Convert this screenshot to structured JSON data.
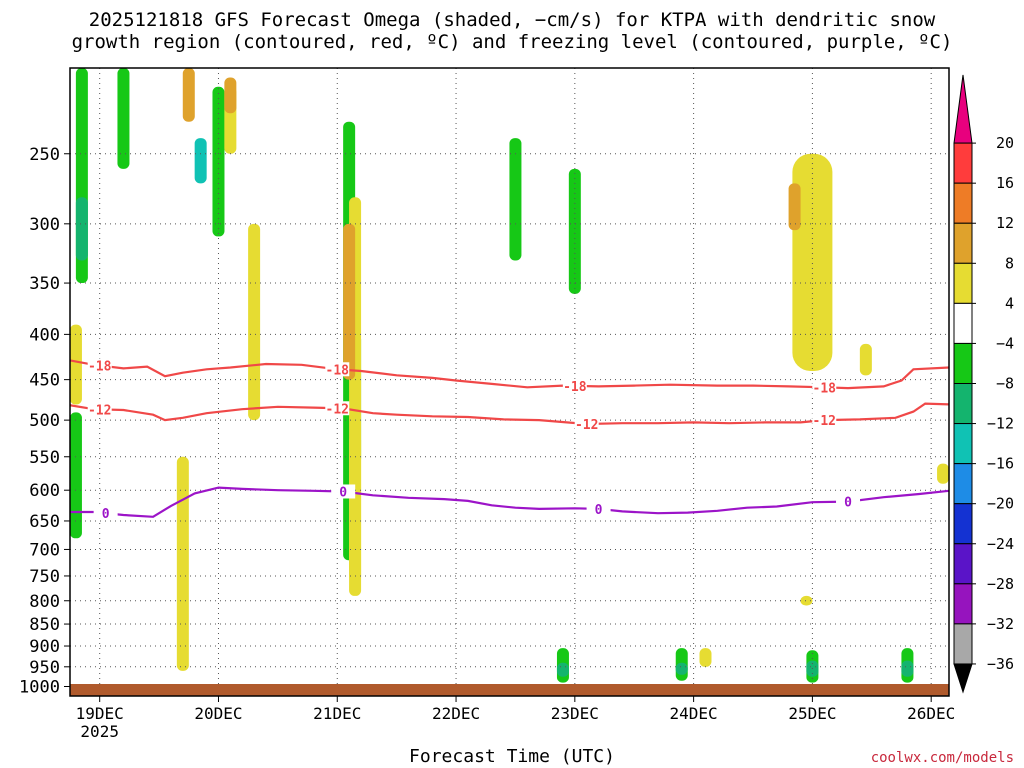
{
  "title_line1": "2025121818 GFS Forecast Omega (shaded, −cm/s) for KTPA with dendritic snow",
  "title_line2": "growth region (contoured, red, ºC) and freezing level (contoured, purple, ºC)",
  "xlabel": "Forecast Time (UTC)",
  "credit": "coolwx.com/models",
  "colors": {
    "dgz_contour": "#f04848",
    "freezing_contour": "#9c14c8",
    "terrain": "#b05a2c",
    "grid": "#555555"
  },
  "chart_data": {
    "type": "heatmap",
    "title": "2025121818 GFS Forecast Omega (shaded, −cm/s) for KTPA with dendritic snow growth region (contoured, red, ºC) and freezing level (contoured, purple, ºC)",
    "xlabel": "Forecast Time (UTC)",
    "ylabel": "",
    "y_axis": {
      "ticks": [
        250,
        300,
        350,
        400,
        450,
        500,
        550,
        600,
        650,
        700,
        750,
        800,
        850,
        900,
        950,
        1000
      ],
      "range_hpa": [
        200,
        1025
      ],
      "scale": "log-pressure"
    },
    "x_axis": {
      "ticks": [
        "19DEC",
        "20DEC",
        "21DEC",
        "22DEC",
        "23DEC",
        "24DEC",
        "25DEC",
        "26DEC"
      ],
      "year_label": "2025",
      "range_days": [
        -0.25,
        7.15
      ]
    },
    "colorbar": {
      "labels": [
        "20",
        "16",
        "12",
        "8",
        "4",
        "−4",
        "−8",
        "−12",
        "−16",
        "−20",
        "−24",
        "−28",
        "−32",
        "−36"
      ],
      "colors": [
        "#e8007e",
        "#ff3c3c",
        "#ee7c26",
        "#dfa22c",
        "#e6dc32",
        "#ffffff",
        "#16c816",
        "#14b46e",
        "#10c2b4",
        "#1e8ce6",
        "#1432d2",
        "#5a14c8",
        "#9614be",
        "#a8a8a8",
        "#000000"
      ]
    },
    "contours": [
      {
        "name": "dendritic growth upper",
        "label": "-18",
        "color": "#f04848",
        "label_at_days": [
          0.0,
          2.0,
          4.0,
          6.1
        ],
        "points": [
          [
            -0.25,
            428
          ],
          [
            -0.05,
            433
          ],
          [
            0.2,
            437
          ],
          [
            0.4,
            435
          ],
          [
            0.55,
            446
          ],
          [
            0.7,
            442
          ],
          [
            0.9,
            438
          ],
          [
            1.1,
            436
          ],
          [
            1.4,
            432
          ],
          [
            1.7,
            433
          ],
          [
            2.0,
            438
          ],
          [
            2.2,
            440
          ],
          [
            2.5,
            445
          ],
          [
            2.8,
            448
          ],
          [
            3.0,
            451
          ],
          [
            3.3,
            455
          ],
          [
            3.6,
            459
          ],
          [
            3.9,
            457
          ],
          [
            4.2,
            458
          ],
          [
            4.5,
            457
          ],
          [
            4.8,
            456
          ],
          [
            5.2,
            457
          ],
          [
            5.5,
            457
          ],
          [
            5.8,
            458
          ],
          [
            6.1,
            459
          ],
          [
            6.3,
            460
          ],
          [
            6.6,
            458
          ],
          [
            6.75,
            451
          ],
          [
            6.85,
            438
          ],
          [
            7.15,
            436
          ]
        ]
      },
      {
        "name": "dendritic growth lower",
        "label": "-12",
        "color": "#f04848",
        "label_at_days": [
          0.0,
          2.0,
          4.1,
          6.1
        ],
        "points": [
          [
            -0.25,
            481
          ],
          [
            -0.05,
            486
          ],
          [
            0.2,
            487
          ],
          [
            0.45,
            493
          ],
          [
            0.55,
            500
          ],
          [
            0.7,
            497
          ],
          [
            0.9,
            491
          ],
          [
            1.2,
            486
          ],
          [
            1.5,
            483
          ],
          [
            1.8,
            484
          ],
          [
            2.05,
            485
          ],
          [
            2.3,
            491
          ],
          [
            2.5,
            493
          ],
          [
            2.8,
            495
          ],
          [
            3.1,
            496
          ],
          [
            3.4,
            499
          ],
          [
            3.7,
            500
          ],
          [
            4.1,
            505
          ],
          [
            4.4,
            504
          ],
          [
            4.7,
            504
          ],
          [
            5.0,
            503
          ],
          [
            5.3,
            504
          ],
          [
            5.6,
            503
          ],
          [
            5.9,
            503
          ],
          [
            6.1,
            500
          ],
          [
            6.4,
            499
          ],
          [
            6.7,
            497
          ],
          [
            6.85,
            489
          ],
          [
            6.95,
            479
          ],
          [
            7.15,
            480
          ]
        ]
      },
      {
        "name": "freezing level",
        "label": "0",
        "color": "#9c14c8",
        "label_at_days": [
          0.05,
          2.05,
          4.2,
          6.3
        ],
        "points": [
          [
            -0.25,
            635
          ],
          [
            -0.05,
            635
          ],
          [
            0.2,
            640
          ],
          [
            0.45,
            643
          ],
          [
            0.6,
            625
          ],
          [
            0.8,
            605
          ],
          [
            1.0,
            596
          ],
          [
            1.2,
            598
          ],
          [
            1.5,
            600
          ],
          [
            1.8,
            601
          ],
          [
            2.05,
            602
          ],
          [
            2.3,
            608
          ],
          [
            2.6,
            612
          ],
          [
            2.9,
            614
          ],
          [
            3.1,
            617
          ],
          [
            3.3,
            624
          ],
          [
            3.5,
            628
          ],
          [
            3.7,
            630
          ],
          [
            4.0,
            629
          ],
          [
            4.2,
            630
          ],
          [
            4.4,
            634
          ],
          [
            4.7,
            637
          ],
          [
            4.95,
            636
          ],
          [
            5.2,
            633
          ],
          [
            5.45,
            628
          ],
          [
            5.7,
            626
          ],
          [
            6.0,
            619
          ],
          [
            6.3,
            618
          ],
          [
            6.6,
            611
          ],
          [
            6.9,
            606
          ],
          [
            7.15,
            601
          ]
        ]
      }
    ],
    "shaded_regions": [
      {
        "value": -4,
        "at_day": -0.15,
        "p_top": 200,
        "p_bottom": 350
      },
      {
        "value": -4,
        "at_day": 0.2,
        "p_top": 200,
        "p_bottom": 260
      },
      {
        "value": -4,
        "at_day": 1.0,
        "p_top": 210,
        "p_bottom": 310
      },
      {
        "value": -4,
        "at_day": 2.1,
        "p_top": 230,
        "p_bottom": 720
      },
      {
        "value": -4,
        "at_day": 2.15,
        "p_top": 400,
        "p_bottom": 560
      },
      {
        "value": -4,
        "at_day": 3.5,
        "p_top": 240,
        "p_bottom": 330
      },
      {
        "value": -4,
        "at_day": 4.0,
        "p_top": 260,
        "p_bottom": 360
      },
      {
        "value": -4,
        "at_day": 6.0,
        "p_top": 330,
        "p_bottom": 385
      },
      {
        "value": -4,
        "at_day": 3.9,
        "p_top": 905,
        "p_bottom": 990
      },
      {
        "value": -4,
        "at_day": 4.9,
        "p_top": 905,
        "p_bottom": 985
      },
      {
        "value": -4,
        "at_day": 6.0,
        "p_top": 910,
        "p_bottom": 990
      },
      {
        "value": -4,
        "at_day": 6.8,
        "p_top": 905,
        "p_bottom": 990
      },
      {
        "value": -4,
        "at_day": -0.2,
        "p_top": 490,
        "p_bottom": 680
      },
      {
        "value": -8,
        "at_day": -0.15,
        "p_top": 280,
        "p_bottom": 330
      },
      {
        "value": -8,
        "at_day": 3.9,
        "p_top": 940,
        "p_bottom": 975
      },
      {
        "value": -8,
        "at_day": 4.9,
        "p_top": 940,
        "p_bottom": 970
      },
      {
        "value": -8,
        "at_day": 6.0,
        "p_top": 935,
        "p_bottom": 975
      },
      {
        "value": -8,
        "at_day": 6.8,
        "p_top": 935,
        "p_bottom": 975
      },
      {
        "value": -12,
        "at_day": 0.85,
        "p_top": 240,
        "p_bottom": 270
      },
      {
        "value": 4,
        "at_day": 6.0,
        "p_top": 250,
        "p_bottom": 440
      },
      {
        "value": 4,
        "at_day": 1.1,
        "p_top": 210,
        "p_bottom": 250
      },
      {
        "value": 4,
        "at_day": 2.15,
        "p_top": 280,
        "p_bottom": 790
      },
      {
        "value": 4,
        "at_day": -0.2,
        "p_top": 390,
        "p_bottom": 480
      },
      {
        "value": 4,
        "at_day": 0.7,
        "p_top": 550,
        "p_bottom": 960
      },
      {
        "value": 4,
        "at_day": 1.3,
        "p_top": 300,
        "p_bottom": 500
      },
      {
        "value": 4,
        "at_day": 2.15,
        "p_top": 520,
        "p_bottom": 760
      },
      {
        "value": 4,
        "at_day": 5.1,
        "p_top": 905,
        "p_bottom": 950
      },
      {
        "value": 4,
        "at_day": 6.45,
        "p_top": 410,
        "p_bottom": 445
      },
      {
        "value": 4,
        "at_day": 7.1,
        "p_top": 560,
        "p_bottom": 590
      },
      {
        "value": 4,
        "at_day": 5.95,
        "p_top": 790,
        "p_bottom": 810
      },
      {
        "value": 8,
        "at_day": 5.85,
        "p_top": 270,
        "p_bottom": 305
      },
      {
        "value": 8,
        "at_day": 2.1,
        "p_top": 300,
        "p_bottom": 450
      },
      {
        "value": 8,
        "at_day": 0.75,
        "p_top": 200,
        "p_bottom": 230
      },
      {
        "value": 8,
        "at_day": 1.1,
        "p_top": 205,
        "p_bottom": 225
      }
    ]
  }
}
